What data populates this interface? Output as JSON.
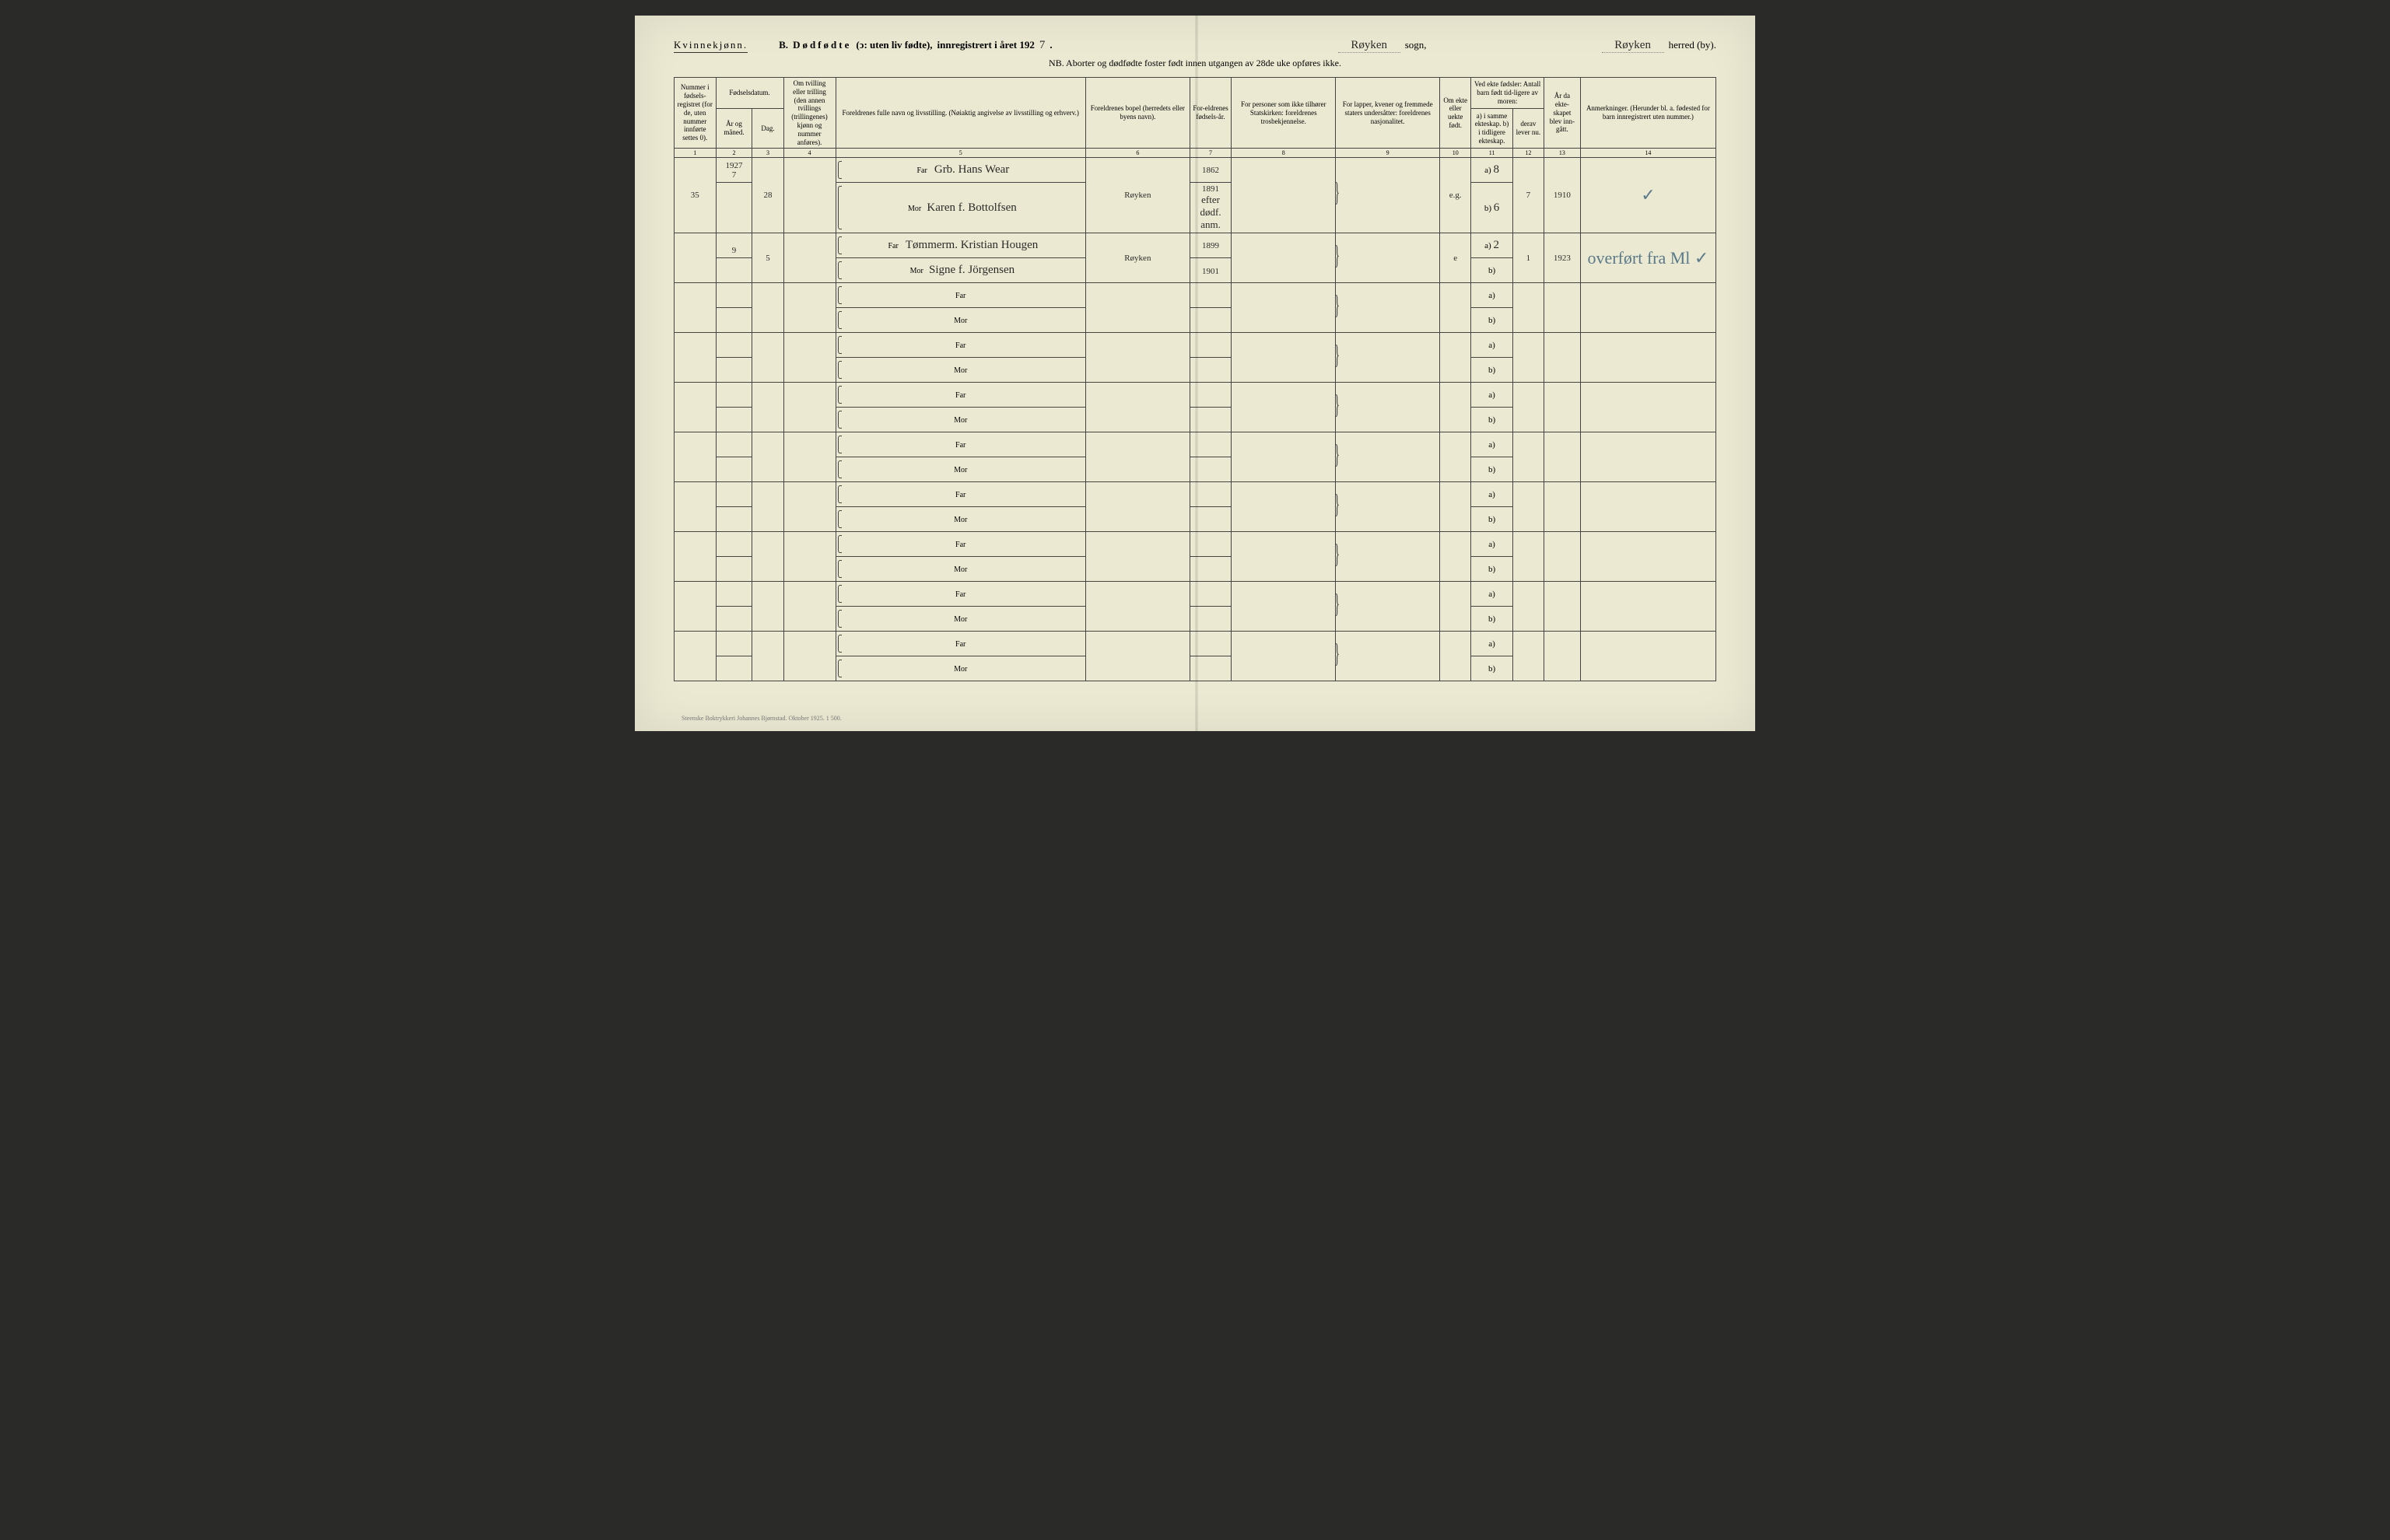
{
  "header": {
    "gender": "Kvinnekjønn.",
    "section": "B.",
    "title_main": "Dødfødte",
    "title_paren": "(ↄ: uten liv fødte),",
    "title_reg": "innregistrert i året 192",
    "year_suffix": "7",
    "sogn_fill": "Røyken",
    "sogn_label": "sogn,",
    "herred_fill": "Røyken",
    "herred_label": "herred (by).",
    "nb": "NB.  Aborter og dødfødte foster født innen utgangen av 28de uke opføres ikke."
  },
  "columns": {
    "c1": "Nummer i fødsels-registret (for de, uten nummer innførte settes 0).",
    "c2_top": "Fødselsdatum.",
    "c2a": "År og måned.",
    "c2b": "Dag.",
    "c3": "Om tvilling eller trilling (den annen tvillings (trillingenes) kjønn og nummer anføres).",
    "c4": "Foreldrenes fulle navn og livsstilling. (Nøiaktig angivelse av livsstilling og erhverv.)",
    "c5": "Foreldrenes bopel (herredets eller byens navn).",
    "c6": "For-eldrenes fødsels-år.",
    "c7": "For personer som ikke tilhører Statskirken: foreldrenes trosbekjennelse.",
    "c8": "For lapper, kvener og fremmede staters undersåtter: foreldrenes nasjonalitet.",
    "c9": "Om ekte eller uekte født.",
    "c10_top": "Ved ekte fødsler: Antall barn født tid-ligere av moren:",
    "c10a": "a) i samme ekteskap. b) i tidligere ekteskap.",
    "c10b": "derav lever nu.",
    "c11": "År da ekte-skapet blev inn-gått.",
    "c12": "Anmerkninger. (Herunder bl. a. fødested for barn innregistrert uten nummer.)",
    "nums": [
      "1",
      "2",
      "3",
      "4",
      "5",
      "6",
      "7",
      "8",
      "9",
      "10",
      "11",
      "12",
      "13",
      "14"
    ]
  },
  "labels": {
    "far": "Far",
    "mor": "Mor",
    "a": "a)",
    "b": "b)"
  },
  "rows": [
    {
      "num": "35",
      "year": "1927",
      "month": "7",
      "day": "28",
      "far_name": "Grb. Hans Wear",
      "mor_name": "Karen f. Bottolfsen",
      "bopel": "Røyken",
      "far_year": "1862",
      "mor_year": "1891",
      "ekte": "e.g.",
      "a_val": "8",
      "b_val": "6",
      "lever": "7",
      "ekteskap_year": "1910",
      "annot_far": "✓",
      "annot_mor": "",
      "mor_extra": "efter dødf. anm."
    },
    {
      "num": "",
      "year": "",
      "month": "9",
      "day": "5",
      "far_name": "Tømmerm. Kristian Hougen",
      "mor_name": "Signe f. Jörgensen",
      "bopel": "Røyken",
      "far_year": "1899",
      "mor_year": "1901",
      "ekte": "e",
      "a_val": "2",
      "b_val": "",
      "lever": "1",
      "ekteskap_year": "1923",
      "annot_far": "overført fra Ml ✓",
      "annot_mor": "",
      "mor_extra": ""
    }
  ],
  "empty_rows": 8,
  "footer": "Steenske Boktrykkeri Johannes Bjørnstad.   Oktober 1925.    1 500."
}
